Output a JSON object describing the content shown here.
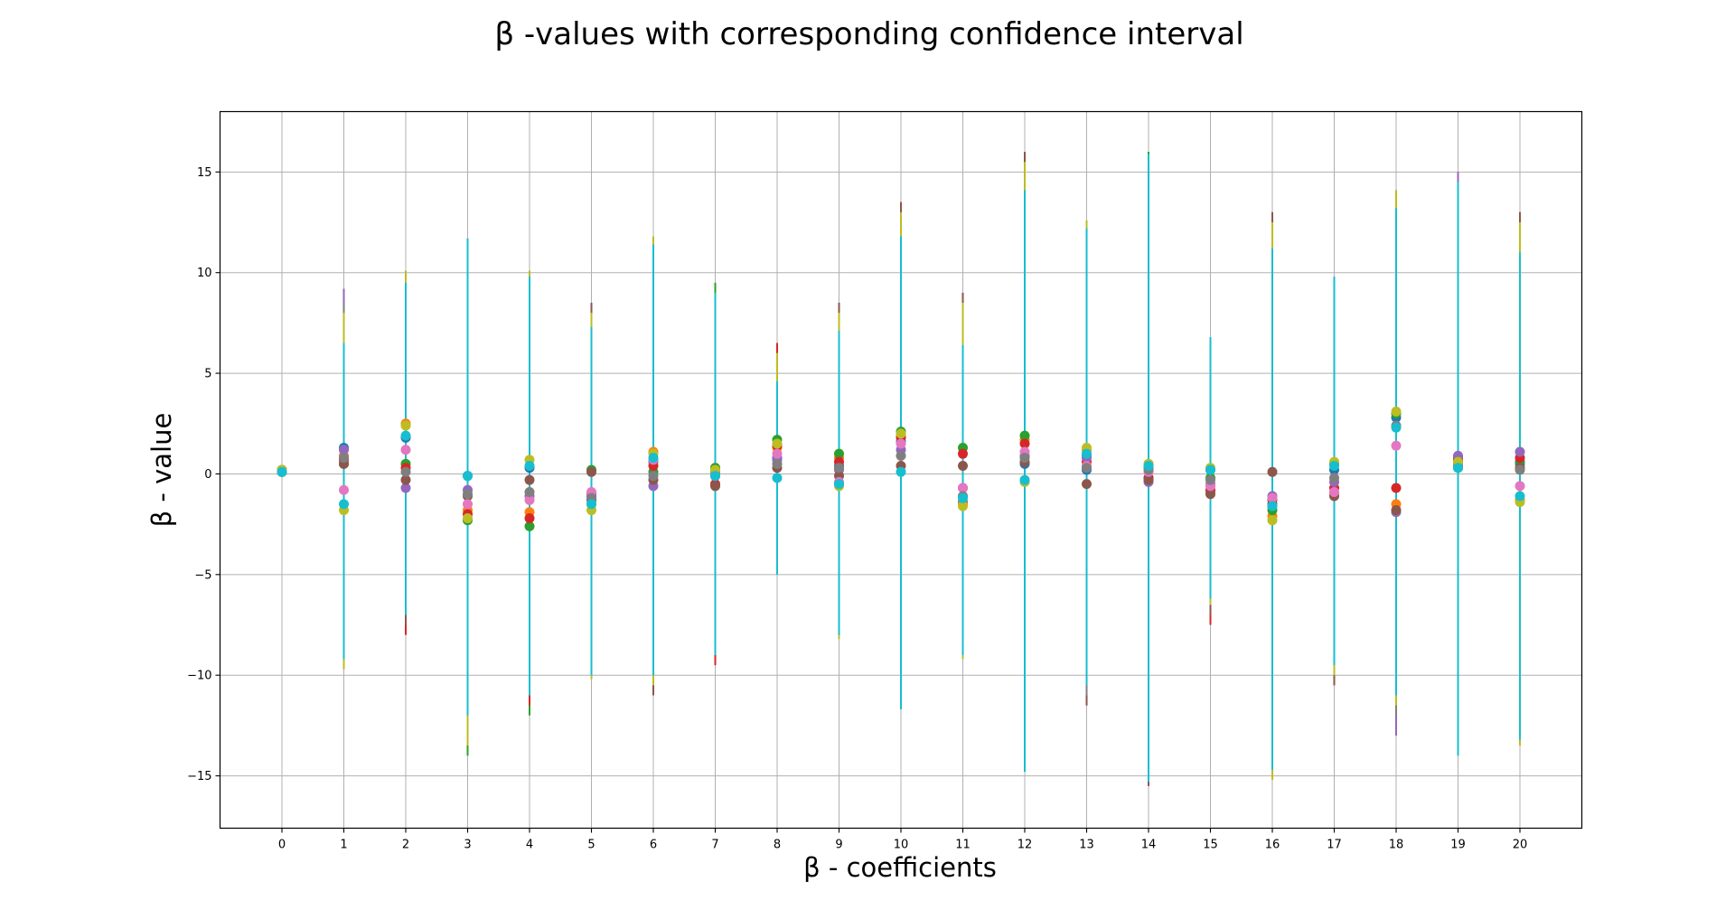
{
  "chart_data": {
    "type": "scatter",
    "title": "β -values with corresponding confidence interval",
    "xlabel": "β - coefficients",
    "ylabel": "β - value",
    "x_ticks": [
      "0",
      "1",
      "2",
      "3",
      "4",
      "5",
      "6",
      "7",
      "8",
      "9",
      "10",
      "11",
      "12",
      "13",
      "14",
      "15",
      "16",
      "17",
      "18",
      "19",
      "20"
    ],
    "y_ticks": [
      {
        "value": -15,
        "label": "−15"
      },
      {
        "value": -10,
        "label": "−10"
      },
      {
        "value": -5,
        "label": "−5"
      },
      {
        "value": 0,
        "label": "0"
      },
      {
        "value": 5,
        "label": "5"
      },
      {
        "value": 10,
        "label": "10"
      },
      {
        "value": 15,
        "label": "15"
      }
    ],
    "xlim": [
      -1,
      21
    ],
    "ylim": [
      -17.6,
      18
    ],
    "grid": true,
    "colors": [
      "#1f77b4",
      "#ff7f0e",
      "#2ca02c",
      "#d62728",
      "#9467bd",
      "#8c564b",
      "#e377c2",
      "#7f7f7f",
      "#bcbd22",
      "#17becf"
    ],
    "series": [
      {
        "values": [
          0.1,
          1.3,
          1.8,
          -0.1,
          0.3,
          -1.3,
          0.6,
          -0.1,
          0.8,
          0.4,
          1.6,
          -1.4,
          0.5,
          0.2,
          -0.2,
          0.2,
          -1.5,
          0.2,
          2.8,
          0.7,
          0.6
        ],
        "lower": [
          0.0,
          -9.0,
          -7.0,
          -13.0,
          -11.0,
          -9.5,
          -10.5,
          -9.0,
          -4.0,
          -7.0,
          -11.0,
          -9.0,
          -14.0,
          -10.5,
          -15.0,
          -6.0,
          -14.0,
          -9.5,
          -11.5,
          -13.0,
          -12.0
        ],
        "upper": [
          0.2,
          9.0,
          9.5,
          11.0,
          9.5,
          8.0,
          11.0,
          9.0,
          6.0,
          8.0,
          13.0,
          8.5,
          16.0,
          12.0,
          15.5,
          6.5,
          12.5,
          9.5,
          13.5,
          14.5,
          12.5
        ]
      },
      {
        "values": [
          0.2,
          0.9,
          2.5,
          -1.8,
          -1.9,
          -1.5,
          1.1,
          0.3,
          1.3,
          0.8,
          1.9,
          -1.5,
          1.7,
          1.2,
          0.5,
          -0.9,
          -2.1,
          -1.0,
          -1.5,
          0.5,
          -1.3
        ],
        "lower": [
          0.1,
          -9.5,
          -6.0,
          -12.5,
          -10.0,
          -10.0,
          -10.0,
          -9.5,
          -4.5,
          -8.0,
          -11.5,
          -9.0,
          -14.5,
          -10.0,
          -15.5,
          -7.0,
          -15.0,
          -10.0,
          -10.0,
          -13.5,
          -13.0
        ],
        "upper": [
          0.3,
          8.5,
          10.0,
          9.0,
          9.0,
          7.0,
          11.5,
          9.0,
          6.5,
          8.5,
          13.5,
          8.0,
          15.5,
          12.5,
          15.5,
          6.0,
          12.0,
          9.0,
          14.0,
          14.0,
          12.0
        ]
      },
      {
        "values": [
          0.1,
          0.5,
          0.5,
          -2.3,
          -2.6,
          0.2,
          0.1,
          0.3,
          1.7,
          1.0,
          2.1,
          1.3,
          1.9,
          0.9,
          0.3,
          -0.2,
          -1.8,
          0.5,
          3.0,
          0.3,
          0.5
        ],
        "lower": [
          0.0,
          -8.0,
          -5.5,
          -14.0,
          -12.0,
          -9.0,
          -11.0,
          -9.0,
          -4.0,
          -7.5,
          -11.0,
          -8.5,
          -14.0,
          -11.0,
          -15.0,
          -6.5,
          -14.5,
          -10.0,
          -12.0,
          -13.0,
          -12.5
        ],
        "upper": [
          0.2,
          8.0,
          9.0,
          10.0,
          9.5,
          8.0,
          10.5,
          9.5,
          6.5,
          8.5,
          13.0,
          8.5,
          15.5,
          12.0,
          16.0,
          6.5,
          12.5,
          9.5,
          13.0,
          14.5,
          13.0
        ]
      },
      {
        "values": [
          0.2,
          0.7,
          0.3,
          -2.0,
          -2.2,
          -1.0,
          0.4,
          -0.5,
          1.4,
          0.6,
          1.8,
          1.0,
          1.5,
          0.6,
          -0.2,
          -0.8,
          -1.3,
          -0.7,
          -0.7,
          0.8,
          0.8
        ],
        "lower": [
          0.1,
          -8.5,
          -8.0,
          -13.5,
          -11.5,
          -9.5,
          -11.0,
          -9.5,
          -4.5,
          -7.5,
          -11.5,
          -9.0,
          -14.5,
          -11.5,
          -15.5,
          -7.5,
          -14.0,
          -10.5,
          -11.5,
          -13.5,
          -13.0
        ],
        "upper": [
          0.3,
          8.0,
          8.5,
          10.5,
          9.0,
          8.5,
          10.5,
          9.0,
          6.5,
          8.5,
          13.5,
          9.0,
          16.0,
          12.0,
          15.5,
          6.5,
          13.0,
          9.5,
          13.5,
          15.0,
          13.0
        ]
      },
      {
        "values": [
          0.1,
          1.2,
          -0.7,
          -0.8,
          -1.1,
          -1.1,
          -0.6,
          -0.1,
          0.7,
          0.2,
          1.2,
          -0.7,
          0.9,
          0.8,
          -0.4,
          -0.5,
          -1.1,
          -0.4,
          -1.9,
          0.9,
          1.1
        ],
        "lower": [
          0.0,
          -7.5,
          -7.0,
          -13.0,
          -11.0,
          -9.5,
          -10.5,
          -9.0,
          -4.5,
          -7.5,
          -11.0,
          -8.5,
          -14.0,
          -11.0,
          -15.0,
          -6.5,
          -14.0,
          -10.0,
          -13.0,
          -13.5,
          -12.5
        ],
        "upper": [
          0.2,
          9.2,
          9.5,
          11.0,
          9.5,
          8.0,
          11.0,
          9.0,
          5.5,
          8.0,
          12.0,
          8.5,
          15.5,
          11.5,
          15.0,
          6.5,
          12.5,
          9.5,
          13.0,
          15.0,
          12.5
        ]
      },
      {
        "values": [
          0.2,
          0.5,
          -0.3,
          -1.1,
          -0.3,
          0.1,
          -0.3,
          -0.6,
          0.3,
          -0.1,
          0.4,
          0.4,
          0.6,
          -0.5,
          -0.3,
          -1.0,
          0.1,
          -1.1,
          -1.8,
          0.6,
          0.3
        ],
        "lower": [
          0.1,
          -8.0,
          -7.5,
          -12.5,
          -11.0,
          -9.5,
          -11.0,
          -9.0,
          -4.5,
          -7.5,
          -11.0,
          -8.5,
          -14.0,
          -11.5,
          -15.5,
          -7.0,
          -14.5,
          -10.5,
          -12.0,
          -13.5,
          -13.0
        ],
        "upper": [
          0.3,
          8.5,
          9.0,
          10.5,
          9.5,
          8.5,
          11.0,
          9.0,
          6.0,
          8.5,
          13.5,
          9.0,
          16.0,
          11.5,
          15.0,
          6.5,
          13.0,
          9.5,
          13.0,
          14.5,
          13.0
        ]
      },
      {
        "values": [
          0.2,
          -0.8,
          1.2,
          -1.5,
          -1.3,
          -0.9,
          0.7,
          0.0,
          1.0,
          -0.4,
          1.5,
          -0.7,
          1.1,
          0.4,
          0.1,
          -0.6,
          -1.2,
          -0.9,
          1.4,
          0.4,
          -0.6
        ],
        "lower": [
          0.1,
          -8.5,
          -6.0,
          -12.5,
          -9.0,
          -9.0,
          -10.0,
          -9.0,
          -4.5,
          -7.0,
          -11.0,
          -8.5,
          -14.0,
          -10.5,
          -15.0,
          -6.5,
          -14.0,
          -9.0,
          -9.0,
          -13.5,
          -12.5
        ],
        "upper": [
          0.3,
          7.0,
          9.0,
          10.0,
          9.0,
          7.5,
          10.0,
          9.0,
          5.5,
          7.5,
          12.0,
          7.0,
          15.0,
          11.5,
          15.0,
          6.0,
          11.5,
          9.0,
          12.5,
          14.0,
          11.5
        ]
      },
      {
        "values": [
          0.1,
          0.8,
          0.1,
          -1.0,
          -0.9,
          -1.2,
          -0.1,
          0.1,
          0.5,
          0.3,
          0.9,
          -1.1,
          0.8,
          0.3,
          0.2,
          -0.3,
          -1.6,
          -0.2,
          2.4,
          0.4,
          0.2
        ],
        "lower": [
          0.0,
          -8.5,
          -7.0,
          -13.0,
          -11.0,
          -9.5,
          -10.5,
          -9.0,
          -4.5,
          -7.5,
          -11.0,
          -9.0,
          -14.0,
          -11.0,
          -15.0,
          -6.5,
          -14.5,
          -10.0,
          -12.0,
          -13.5,
          -13.0
        ],
        "upper": [
          0.2,
          8.5,
          9.0,
          10.5,
          9.5,
          8.0,
          11.0,
          9.0,
          6.0,
          8.0,
          13.0,
          8.5,
          15.5,
          12.0,
          15.5,
          6.5,
          12.5,
          9.5,
          13.5,
          14.5,
          12.5
        ]
      },
      {
        "values": [
          0.2,
          -1.8,
          2.4,
          -2.2,
          0.7,
          -1.8,
          1.0,
          0.2,
          1.5,
          -0.6,
          2.0,
          -1.6,
          -0.4,
          1.3,
          0.5,
          0.3,
          -2.3,
          0.6,
          3.1,
          0.6,
          -1.4
        ],
        "lower": [
          0.1,
          -9.7,
          -7.0,
          -13.5,
          -11.0,
          -10.2,
          -10.5,
          -9.0,
          -4.5,
          -8.2,
          -11.5,
          -9.2,
          -14.5,
          -10.5,
          -15.0,
          -6.5,
          -15.2,
          -10.0,
          -11.5,
          -13.5,
          -13.5
        ],
        "upper": [
          0.3,
          8.0,
          10.1,
          10.5,
          10.1,
          8.0,
          11.8,
          9.0,
          6.0,
          8.0,
          13.0,
          8.5,
          15.5,
          12.6,
          15.5,
          6.5,
          12.5,
          9.5,
          14.1,
          14.5,
          12.5
        ]
      },
      {
        "values": [
          0.1,
          -1.5,
          1.9,
          -0.1,
          0.4,
          -1.5,
          0.8,
          -0.1,
          -0.2,
          -0.5,
          0.1,
          -1.2,
          -0.3,
          1.0,
          0.4,
          0.2,
          -1.6,
          0.4,
          2.3,
          0.3,
          -1.1
        ],
        "lower": [
          0.0,
          -9.2,
          -7.0,
          -12.0,
          -11.0,
          -10.0,
          -10.0,
          -9.0,
          -5.0,
          -8.0,
          -11.7,
          -9.0,
          -14.8,
          -10.5,
          -15.3,
          -6.2,
          -14.7,
          -9.5,
          -11.0,
          -14.0,
          -13.2
        ],
        "upper": [
          0.2,
          6.5,
          9.5,
          11.7,
          9.8,
          7.3,
          11.4,
          9.0,
          4.6,
          7.1,
          11.8,
          6.4,
          14.1,
          12.2,
          15.9,
          6.8,
          11.2,
          9.8,
          13.2,
          14.5,
          11.0
        ]
      }
    ]
  }
}
